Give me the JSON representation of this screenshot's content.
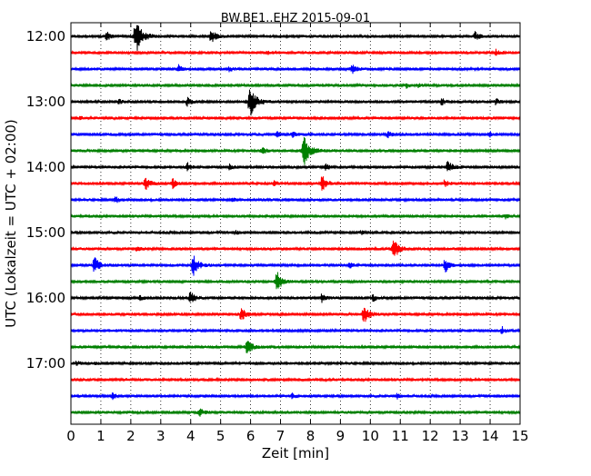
{
  "chart_data": {
    "type": "line",
    "title": "BW.BE1..EHZ 2015-09-01",
    "xlabel": "Zeit  [min]",
    "ylabel": "UTC (Lokalzeit = UTC + 02:00)",
    "xlim": [
      0,
      15
    ],
    "x_ticks": [
      0,
      1,
      2,
      3,
      4,
      5,
      6,
      7,
      8,
      9,
      10,
      11,
      12,
      13,
      14,
      15
    ],
    "x_tick_labels": [
      "0",
      "1",
      "2",
      "3",
      "4",
      "5",
      "6",
      "7",
      "8",
      "9",
      "10",
      "11",
      "12",
      "13",
      "14",
      "15"
    ],
    "y_ticks": [
      {
        "row": 0,
        "label": "12:00"
      },
      {
        "row": 4,
        "label": "13:00"
      },
      {
        "row": 8,
        "label": "14:00"
      },
      {
        "row": 12,
        "label": "15:00"
      },
      {
        "row": 16,
        "label": "16:00"
      },
      {
        "row": 20,
        "label": "17:00"
      }
    ],
    "grid": "vertical dotted",
    "line_colors": [
      "#000000",
      "#ff0000",
      "#0000ff",
      "#008000"
    ],
    "rows": [
      {
        "start": "12:00",
        "events": [
          [
            1.2,
            0.3
          ],
          [
            2.2,
            1.0
          ],
          [
            4.7,
            0.45
          ],
          [
            13.5,
            0.3
          ]
        ]
      },
      {
        "start": "12:15",
        "events": [
          [
            6.6,
            0.1
          ],
          [
            14.2,
            0.2
          ]
        ]
      },
      {
        "start": "12:30",
        "events": [
          [
            3.6,
            0.25
          ],
          [
            5.3,
            0.15
          ],
          [
            9.4,
            0.35
          ]
        ]
      },
      {
        "start": "12:45",
        "events": [
          [
            11.2,
            0.15
          ],
          [
            11.6,
            0.1
          ]
        ]
      },
      {
        "start": "13:00",
        "events": [
          [
            1.6,
            0.15
          ],
          [
            3.9,
            0.3
          ],
          [
            6.0,
            0.95
          ],
          [
            12.4,
            0.2
          ],
          [
            14.2,
            0.2
          ]
        ]
      },
      {
        "start": "13:15",
        "events": [
          [
            0.3,
            0.1
          ]
        ]
      },
      {
        "start": "13:30",
        "events": [
          [
            6.9,
            0.2
          ],
          [
            7.4,
            0.2
          ],
          [
            10.6,
            0.2
          ],
          [
            14.0,
            0.15
          ]
        ]
      },
      {
        "start": "13:45",
        "events": [
          [
            6.4,
            0.25
          ],
          [
            7.8,
            0.9
          ]
        ]
      },
      {
        "start": "14:00",
        "events": [
          [
            3.9,
            0.25
          ],
          [
            5.3,
            0.15
          ],
          [
            8.5,
            0.25
          ],
          [
            12.6,
            0.45
          ]
        ]
      },
      {
        "start": "14:15",
        "events": [
          [
            2.5,
            0.45
          ],
          [
            3.4,
            0.35
          ],
          [
            6.8,
            0.15
          ],
          [
            8.4,
            0.5
          ],
          [
            12.5,
            0.25
          ]
        ]
      },
      {
        "start": "14:30",
        "events": [
          [
            1.5,
            0.25
          ],
          [
            5.4,
            0.1
          ]
        ]
      },
      {
        "start": "14:45",
        "events": [
          [
            14.5,
            0.15
          ]
        ]
      },
      {
        "start": "15:00",
        "events": [
          [
            5.5,
            0.1
          ],
          [
            9.7,
            0.1
          ]
        ]
      },
      {
        "start": "15:15",
        "events": [
          [
            2.2,
            0.15
          ],
          [
            10.8,
            0.65
          ]
        ]
      },
      {
        "start": "15:30",
        "events": [
          [
            0.8,
            0.55
          ],
          [
            4.1,
            0.7
          ],
          [
            9.3,
            0.2
          ],
          [
            12.5,
            0.5
          ]
        ]
      },
      {
        "start": "15:45",
        "events": [
          [
            6.9,
            0.6
          ]
        ]
      },
      {
        "start": "16:00",
        "events": [
          [
            2.3,
            0.15
          ],
          [
            4.0,
            0.45
          ],
          [
            8.4,
            0.3
          ],
          [
            10.1,
            0.2
          ]
        ]
      },
      {
        "start": "16:15",
        "events": [
          [
            5.7,
            0.45
          ],
          [
            9.8,
            0.65
          ]
        ]
      },
      {
        "start": "16:30",
        "events": [
          [
            14.4,
            0.25
          ]
        ]
      },
      {
        "start": "16:45",
        "events": [
          [
            5.9,
            0.55
          ]
        ]
      },
      {
        "start": "17:00",
        "events": [
          [
            0.2,
            0.15
          ],
          [
            0.8,
            0.1
          ]
        ]
      },
      {
        "start": "17:15",
        "events": []
      },
      {
        "start": "17:30",
        "events": [
          [
            1.4,
            0.2
          ],
          [
            7.4,
            0.15
          ],
          [
            10.9,
            0.15
          ]
        ]
      },
      {
        "start": "17:45",
        "events": [
          [
            4.3,
            0.3
          ]
        ]
      }
    ]
  }
}
